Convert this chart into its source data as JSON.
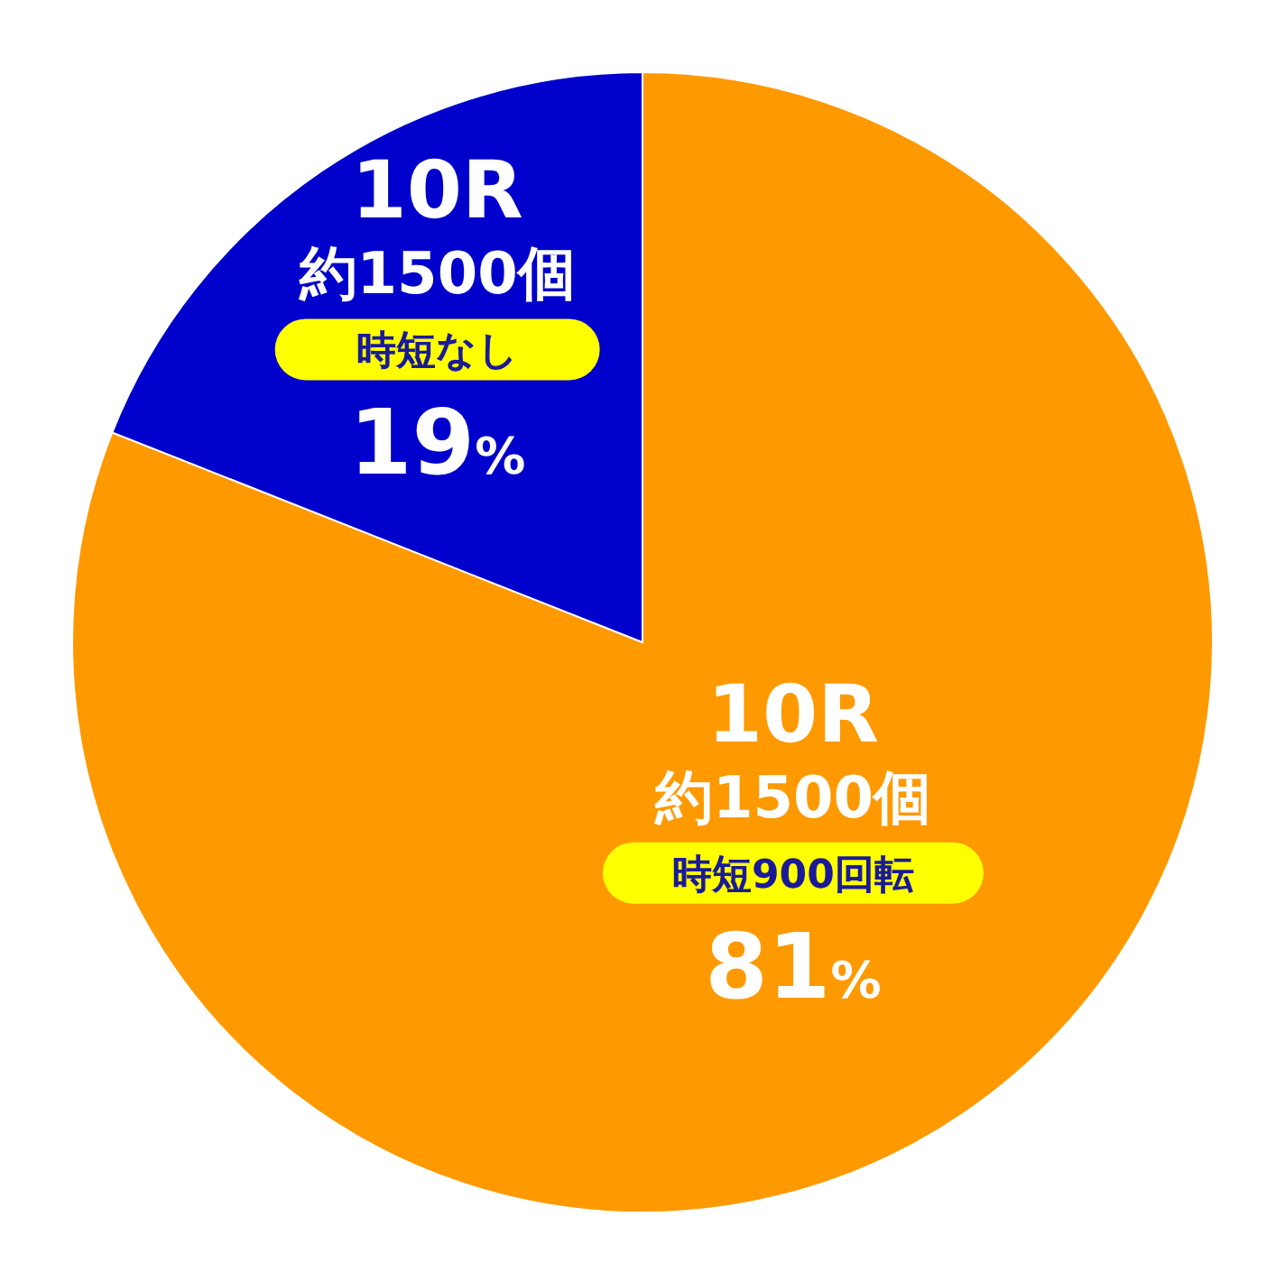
{
  "chart_data": {
    "type": "pie",
    "categories": [
      "10R\n約1500個",
      "10R\n約1500個"
    ],
    "values": [
      81,
      19
    ],
    "colors": [
      "#ff9900",
      "#0000cc"
    ],
    "value_labels": [
      "81%",
      "19%"
    ],
    "annotations": [
      "時短900回転",
      "時短なし"
    ]
  }
}
